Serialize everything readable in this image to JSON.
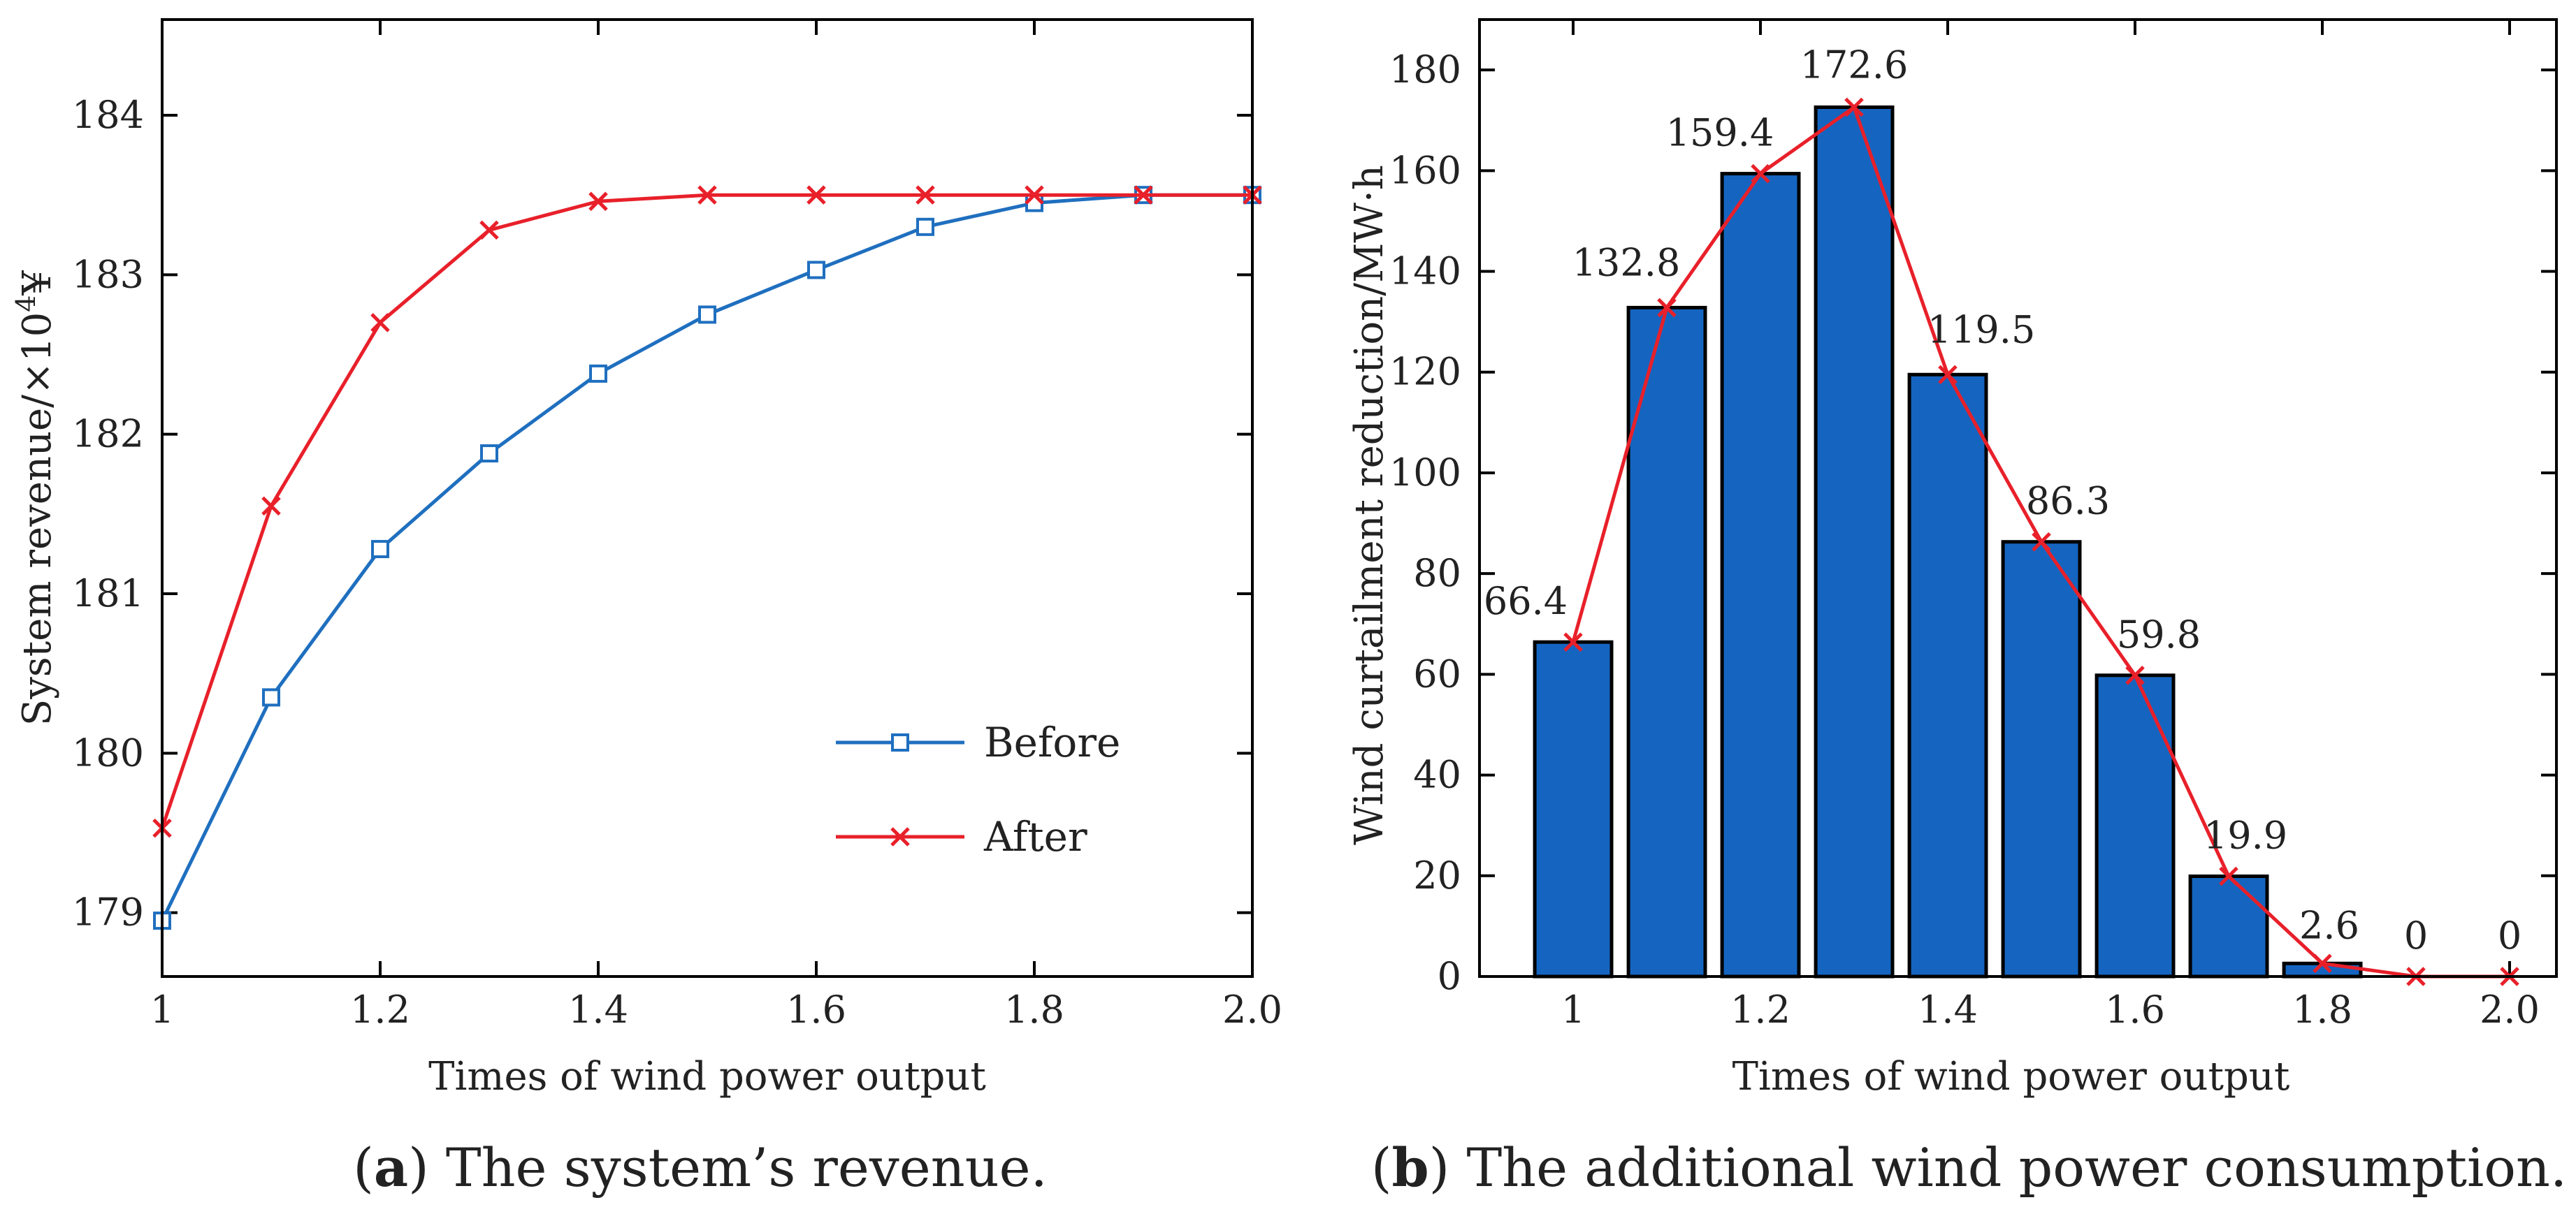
{
  "chart_data": [
    {
      "type": "line",
      "panel": "a",
      "caption_prefix": "a",
      "caption_text": "The system’s revenue.",
      "xlabel": "Times of wind power output",
      "ylabel": "System revenue/×10",
      "ylabel_sup": "4",
      "ylabel_unit": "¥",
      "x": [
        1.0,
        1.1,
        1.2,
        1.3,
        1.4,
        1.5,
        1.6,
        1.7,
        1.8,
        1.9,
        2.0
      ],
      "xlim": [
        1.0,
        2.0
      ],
      "ylim": [
        178.6,
        184.6
      ],
      "xticks": [
        1.0,
        1.2,
        1.4,
        1.6,
        1.8,
        2.0
      ],
      "xtick_labels": [
        "1",
        "1.2",
        "1.4",
        "1.6",
        "1.8",
        "2.0"
      ],
      "yticks": [
        179,
        180,
        181,
        182,
        183,
        184
      ],
      "ytick_labels": [
        "179",
        "180",
        "181",
        "182",
        "183",
        "184"
      ],
      "legend_position": "bottom-right",
      "series": [
        {
          "name": "Before",
          "color": "#1f6fbf",
          "marker": "square",
          "values": [
            178.95,
            180.35,
            181.28,
            181.88,
            182.38,
            182.75,
            183.03,
            183.3,
            183.45,
            183.5,
            183.5
          ]
        },
        {
          "name": "After",
          "color": "#e8202a",
          "marker": "x",
          "values": [
            179.53,
            181.55,
            182.7,
            183.28,
            183.46,
            183.5,
            183.5,
            183.5,
            183.5,
            183.5,
            183.5
          ]
        }
      ]
    },
    {
      "type": "bar",
      "panel": "b",
      "caption_prefix": "b",
      "caption_text": "The additional wind power consumption.",
      "xlabel": "Times of wind power output",
      "ylabel": "Wind curtailment reduction/MW·h",
      "x": [
        1.0,
        1.1,
        1.2,
        1.3,
        1.4,
        1.5,
        1.6,
        1.7,
        1.8,
        1.9,
        2.0
      ],
      "values": [
        66.4,
        132.8,
        159.4,
        172.6,
        119.5,
        86.3,
        59.8,
        19.9,
        2.6,
        0,
        0
      ],
      "value_labels": [
        "66.4",
        "132.8",
        "159.4",
        "172.6",
        "119.5",
        "86.3",
        "59.8",
        "19.9",
        "2.6",
        "0",
        "0"
      ],
      "xlim": [
        0.9,
        2.05
      ],
      "ylim": [
        0,
        190
      ],
      "xticks": [
        1.0,
        1.2,
        1.4,
        1.6,
        1.8,
        2.0
      ],
      "xtick_labels": [
        "1",
        "1.2",
        "1.4",
        "1.6",
        "1.8",
        "2.0"
      ],
      "yticks": [
        0,
        20,
        40,
        60,
        80,
        100,
        120,
        140,
        160,
        180
      ],
      "ytick_labels": [
        "0",
        "20",
        "40",
        "60",
        "80",
        "100",
        "120",
        "140",
        "160",
        "180"
      ],
      "bar_color": "#1565c0",
      "line_color": "#e8202a"
    }
  ]
}
